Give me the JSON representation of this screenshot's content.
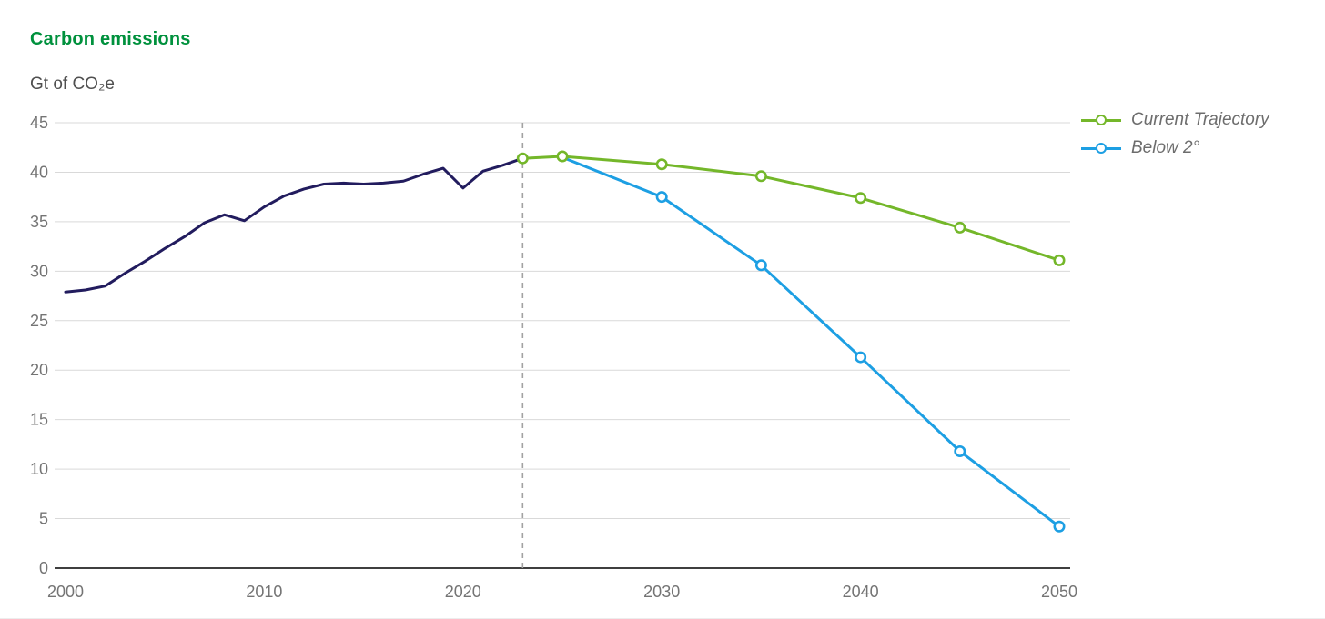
{
  "page": {
    "title": "Carbon emissions",
    "subtitle": "Gt of CO₂e"
  },
  "colors": {
    "title_green": "#00913d",
    "historical_navy": "#221c5e",
    "trajectory_green": "#74b72a",
    "below2_blue": "#1d9fe3",
    "gridline": "#d9d9d9",
    "axis_baseline": "#3f3f3f",
    "dashed_annotation": "#a2a2a2",
    "tick_label": "#747474",
    "legend_text": "#6d6d6d"
  },
  "legend": {
    "items": [
      {
        "label": "Current Trajectory",
        "series": "Current Trajectory"
      },
      {
        "label": "Below 2°",
        "series": "Below 2°"
      }
    ]
  },
  "chart_data": {
    "type": "line",
    "title": "Carbon emissions",
    "ylabel": "Gt of CO₂e",
    "xlabel": "",
    "xlim": [
      2000,
      2050
    ],
    "ylim": [
      0,
      45
    ],
    "x_ticks": [
      2000,
      2010,
      2020,
      2030,
      2040,
      2050
    ],
    "y_ticks": [
      0,
      5,
      10,
      15,
      20,
      25,
      30,
      35,
      40,
      45
    ],
    "grid": "horizontal",
    "legend_position": "top-right",
    "annotations": [
      {
        "type": "vertical-dashed-line",
        "x": 2023
      }
    ],
    "series": [
      {
        "name": "Historical",
        "color_key": "historical_navy",
        "markers": false,
        "in_legend": false,
        "x": [
          2000,
          2001,
          2002,
          2003,
          2004,
          2005,
          2006,
          2007,
          2008,
          2009,
          2010,
          2011,
          2012,
          2013,
          2014,
          2015,
          2016,
          2017,
          2018,
          2019,
          2020,
          2021,
          2022,
          2023
        ],
        "values": [
          27.9,
          28.1,
          28.5,
          29.8,
          31.0,
          32.3,
          33.5,
          34.9,
          35.7,
          35.1,
          36.5,
          37.6,
          38.3,
          38.8,
          38.9,
          38.8,
          38.9,
          39.1,
          39.8,
          40.4,
          38.4,
          40.1,
          40.7,
          41.4
        ]
      },
      {
        "name": "Below 2°",
        "color_key": "below2_blue",
        "markers": true,
        "marker_skip_first": true,
        "in_legend": true,
        "x": [
          2025,
          2030,
          2035,
          2040,
          2045,
          2050
        ],
        "values": [
          41.5,
          37.5,
          30.6,
          21.3,
          11.8,
          4.2
        ]
      },
      {
        "name": "Current Trajectory",
        "color_key": "trajectory_green",
        "markers": true,
        "marker_skip_first": false,
        "in_legend": true,
        "x": [
          2023,
          2025,
          2030,
          2035,
          2040,
          2045,
          2050
        ],
        "values": [
          41.4,
          41.6,
          40.8,
          39.6,
          37.4,
          34.4,
          31.1
        ]
      }
    ]
  }
}
